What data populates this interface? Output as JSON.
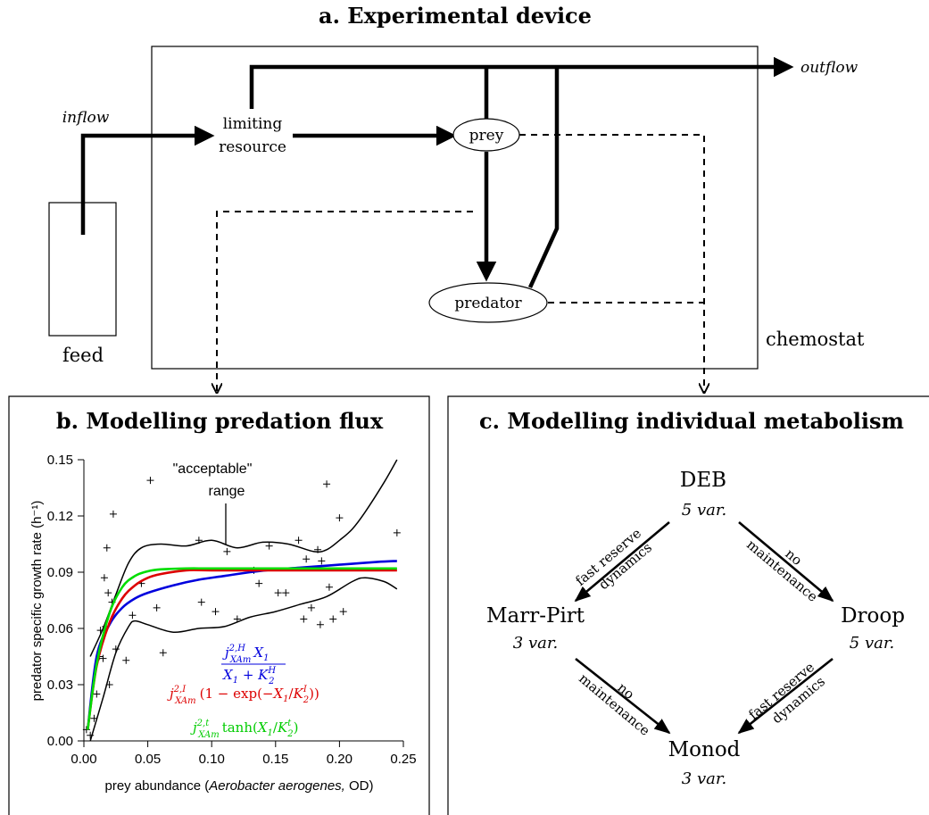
{
  "panel_a": {
    "title": "a. Experimental device",
    "labels": {
      "inflow": "inflow",
      "outflow": "outflow",
      "limiting_resource_1": "limiting",
      "limiting_resource_2": "resource",
      "prey": "prey",
      "predator": "predator",
      "feed": "feed",
      "chemostat": "chemostat"
    }
  },
  "panel_b": {
    "title": "b. Modelling predation flux",
    "annotation_1": "\"acceptable\"",
    "annotation_2": "range",
    "formulas": {
      "holling": "j²·ᴴXAm X₁ / (X₁ + K₂ᴴ)",
      "ivlev": "j²·ᴵXAm (1 − exp(−X₁/K₂ᴵ))",
      "tanh": "j²·ᵗXAm tanh(X₁/K₂ᵗ)"
    }
  },
  "panel_c": {
    "title": "c. Modelling individual metabolism",
    "nodes": {
      "deb": {
        "name": "DEB",
        "vars": "5 var."
      },
      "marr_pirt": {
        "name": "Marr-Pirt",
        "vars": "3 var."
      },
      "droop": {
        "name": "Droop",
        "vars": "5 var."
      },
      "monod": {
        "name": "Monod",
        "vars": "3 var."
      }
    },
    "edges": {
      "deb_marr_1": "fast reserve",
      "deb_marr_2": "dynamics",
      "deb_droop_1": "no",
      "deb_droop_2": "maintenance",
      "marr_monod_1": "no",
      "marr_monod_2": "maintenance",
      "droop_monod_1": "fast reserve",
      "droop_monod_2": "dynamics"
    }
  },
  "chart_data": {
    "type": "scatter",
    "xlabel_prefix": "prey abundance (",
    "xlabel_italic": "Aerobacter aerogenes,",
    "xlabel_suffix": " OD)",
    "ylabel": "predator specific growth rate (h⁻¹)",
    "xlim": [
      0,
      0.25
    ],
    "ylim": [
      0,
      0.15
    ],
    "x_ticks": [
      "0.00",
      "0.05",
      "0.10",
      "0.15",
      "0.20",
      "0.25"
    ],
    "y_ticks": [
      "0.00",
      "0.03",
      "0.06",
      "0.09",
      "0.12",
      "0.15"
    ],
    "colors": {
      "holling": "#0000dd",
      "ivlev": "#dd0000",
      "tanh": "#00dd00",
      "range": "#000000",
      "points": "#000000"
    },
    "points": [
      [
        0.002,
        0.006
      ],
      [
        0.005,
        0.003
      ],
      [
        0.008,
        0.012
      ],
      [
        0.01,
        0.025
      ],
      [
        0.012,
        0.045
      ],
      [
        0.013,
        0.059
      ],
      [
        0.015,
        0.044
      ],
      [
        0.016,
        0.087
      ],
      [
        0.017,
        0.061
      ],
      [
        0.018,
        0.103
      ],
      [
        0.019,
        0.079
      ],
      [
        0.02,
        0.03
      ],
      [
        0.022,
        0.074
      ],
      [
        0.023,
        0.121
      ],
      [
        0.025,
        0.049
      ],
      [
        0.033,
        0.043
      ],
      [
        0.038,
        0.067
      ],
      [
        0.045,
        0.084
      ],
      [
        0.052,
        0.139
      ],
      [
        0.057,
        0.071
      ],
      [
        0.062,
        0.047
      ],
      [
        0.09,
        0.107
      ],
      [
        0.092,
        0.074
      ],
      [
        0.103,
        0.069
      ],
      [
        0.112,
        0.101
      ],
      [
        0.12,
        0.065
      ],
      [
        0.133,
        0.091
      ],
      [
        0.137,
        0.084
      ],
      [
        0.145,
        0.104
      ],
      [
        0.152,
        0.079
      ],
      [
        0.158,
        0.079
      ],
      [
        0.168,
        0.107
      ],
      [
        0.172,
        0.065
      ],
      [
        0.174,
        0.097
      ],
      [
        0.178,
        0.071
      ],
      [
        0.183,
        0.102
      ],
      [
        0.185,
        0.062
      ],
      [
        0.186,
        0.096
      ],
      [
        0.19,
        0.137
      ],
      [
        0.192,
        0.082
      ],
      [
        0.195,
        0.065
      ],
      [
        0.2,
        0.119
      ],
      [
        0.203,
        0.069
      ],
      [
        0.245,
        0.111
      ]
    ],
    "series": [
      {
        "key": "holling",
        "x": [
          0.003,
          0.01,
          0.02,
          0.03,
          0.04,
          0.05,
          0.07,
          0.09,
          0.11,
          0.13,
          0.15,
          0.17,
          0.19,
          0.21,
          0.23,
          0.245
        ],
        "y": [
          0.006,
          0.045,
          0.062,
          0.071,
          0.076,
          0.079,
          0.083,
          0.086,
          0.088,
          0.09,
          0.0915,
          0.0925,
          0.0935,
          0.0945,
          0.0955,
          0.096
        ]
      },
      {
        "key": "ivlev",
        "x": [
          0.003,
          0.01,
          0.02,
          0.03,
          0.04,
          0.05,
          0.06,
          0.08,
          0.1,
          0.15,
          0.2,
          0.245
        ],
        "y": [
          0.006,
          0.04,
          0.063,
          0.076,
          0.083,
          0.087,
          0.089,
          0.091,
          0.091,
          0.091,
          0.091,
          0.091
        ]
      },
      {
        "key": "tanh",
        "x": [
          0.003,
          0.01,
          0.02,
          0.03,
          0.04,
          0.05,
          0.06,
          0.08,
          0.1,
          0.15,
          0.2,
          0.245
        ],
        "y": [
          0.006,
          0.041,
          0.068,
          0.082,
          0.088,
          0.0905,
          0.0915,
          0.092,
          0.092,
          0.092,
          0.092,
          0.092
        ]
      },
      {
        "key": "range",
        "x": [
          0.005,
          0.015,
          0.025,
          0.035,
          0.045,
          0.06,
          0.08,
          0.1,
          0.12,
          0.14,
          0.16,
          0.18,
          0.19,
          0.2,
          0.21,
          0.22,
          0.235,
          0.245
        ],
        "y": [
          0.045,
          0.06,
          0.078,
          0.095,
          0.103,
          0.105,
          0.104,
          0.107,
          0.103,
          0.106,
          0.105,
          0.101,
          0.102,
          0.107,
          0.113,
          0.122,
          0.138,
          0.15
        ]
      },
      {
        "key": "range",
        "x": [
          0.005,
          0.015,
          0.025,
          0.035,
          0.04,
          0.05,
          0.07,
          0.09,
          0.11,
          0.13,
          0.15,
          0.17,
          0.19,
          0.21,
          0.22,
          0.235,
          0.245
        ],
        "y": [
          0.0,
          0.023,
          0.047,
          0.061,
          0.064,
          0.062,
          0.058,
          0.06,
          0.061,
          0.066,
          0.069,
          0.073,
          0.077,
          0.085,
          0.087,
          0.085,
          0.081
        ]
      }
    ]
  }
}
